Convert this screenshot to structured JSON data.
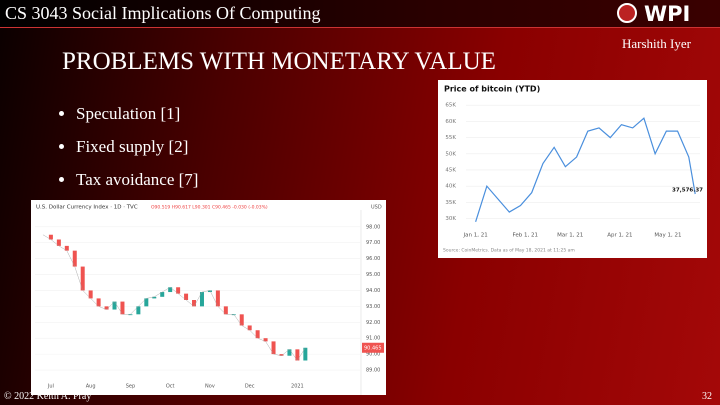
{
  "header": {
    "course": "CS 3043 Social Implications Of Computing",
    "logo": "WPI",
    "author": "Harshith Iyer"
  },
  "title": "PROBLEMS WITH MONETARY VALUE",
  "bullets": [
    "Speculation [1]",
    "Fixed supply [2]",
    "Tax avoidance [7]"
  ],
  "footer": {
    "copyright": "© 2022 Keith A. Pray",
    "page": "32"
  },
  "chart_data": [
    {
      "type": "line",
      "title": "Price of bitcoin (YTD)",
      "color": "#4a8fdd",
      "x": [
        "2021-01-01",
        "2021-01-08",
        "2021-01-15",
        "2021-01-22",
        "2021-01-29",
        "2021-02-05",
        "2021-02-12",
        "2021-02-19",
        "2021-02-26",
        "2021-03-05",
        "2021-03-12",
        "2021-03-19",
        "2021-03-26",
        "2021-04-02",
        "2021-04-09",
        "2021-04-16",
        "2021-04-23",
        "2021-04-30",
        "2021-05-07",
        "2021-05-14",
        "2021-05-18"
      ],
      "values": [
        29000,
        40000,
        36000,
        32000,
        34000,
        38000,
        47000,
        52000,
        46000,
        49000,
        57000,
        58000,
        55000,
        59000,
        58000,
        61000,
        50000,
        57000,
        57000,
        49000,
        37576.37
      ],
      "annotation": "37,576.37",
      "xlim": [
        "2020-12-26",
        "2021-05-21"
      ],
      "xticks": [
        {
          "value": "2021-01-01",
          "label": "Jan 1, 21"
        },
        {
          "value": "2021-02-01",
          "label": "Feb 1, 21"
        },
        {
          "value": "2021-03-01",
          "label": "Mar 1, 21"
        },
        {
          "value": "2021-04-01",
          "label": "Apr 1, 21"
        },
        {
          "value": "2021-05-01",
          "label": "May 1, 21"
        }
      ],
      "ylim": [
        28000,
        66000
      ],
      "yticks": [
        {
          "value": 30000,
          "label": "30K"
        },
        {
          "value": 35000,
          "label": "35K"
        },
        {
          "value": 40000,
          "label": "40K"
        },
        {
          "value": 45000,
          "label": "45K"
        },
        {
          "value": 50000,
          "label": "50K"
        },
        {
          "value": 55000,
          "label": "55K"
        },
        {
          "value": 60000,
          "label": "60K"
        },
        {
          "value": 65000,
          "label": "65K"
        }
      ],
      "source": "Source: CoinMetrics. Data as of May 18, 2021 at 11:25 am",
      "grid": true
    },
    {
      "type": "line",
      "title": "U.S. Dollar Currency Index · 1D · TVC",
      "unit": "USD",
      "color": "#26a69a",
      "ohlc": "O90.519 H90.617 L90.301 C90.465 -0.030 (-0.03%)",
      "values": [
        97.5,
        97.2,
        96.8,
        96.5,
        95.5,
        94.0,
        93.5,
        93.0,
        92.8,
        93.3,
        92.5,
        92.5,
        93.0,
        93.5,
        93.6,
        93.9,
        94.2,
        93.8,
        93.4,
        93.0,
        93.9,
        94.0,
        93.0,
        92.5,
        92.5,
        91.8,
        91.5,
        91.0,
        90.8,
        90.0,
        89.9,
        90.3,
        89.6,
        90.4
      ],
      "last_label": "90.465",
      "xlim": [
        -1,
        40
      ],
      "xticks": [
        {
          "value": 1,
          "label": "Jul"
        },
        {
          "value": 6,
          "label": "Aug"
        },
        {
          "value": 11,
          "label": "Sep"
        },
        {
          "value": 16,
          "label": "Oct"
        },
        {
          "value": 21,
          "label": "Nov"
        },
        {
          "value": 26,
          "label": "Dec"
        },
        {
          "value": 32,
          "label": "2021"
        }
      ],
      "ylim": [
        88.5,
        98.3
      ],
      "yticks": [
        {
          "value": 89,
          "label": "89.00"
        },
        {
          "value": 90,
          "label": "90.00"
        },
        {
          "value": 91,
          "label": "91.00"
        },
        {
          "value": 92,
          "label": "92.00"
        },
        {
          "value": 93,
          "label": "93.00"
        },
        {
          "value": 94,
          "label": "94.00"
        },
        {
          "value": 95,
          "label": "95.00"
        },
        {
          "value": 96,
          "label": "96.00"
        },
        {
          "value": 97,
          "label": "97.00"
        },
        {
          "value": 98,
          "label": "98.00"
        }
      ],
      "grid": true
    }
  ]
}
